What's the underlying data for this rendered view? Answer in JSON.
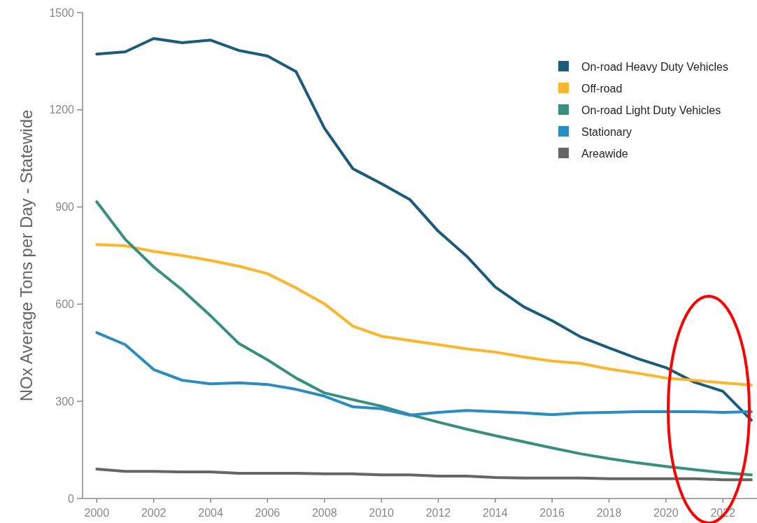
{
  "chart_data": {
    "type": "line",
    "ylabel": "NOx Average Tons per Day - Statewide",
    "x": [
      2000,
      2001,
      2002,
      2003,
      2004,
      2005,
      2006,
      2007,
      2008,
      2009,
      2010,
      2011,
      2012,
      2013,
      2014,
      2015,
      2016,
      2017,
      2018,
      2019,
      2020,
      2021,
      2022,
      2023
    ],
    "series": [
      {
        "name": "On-road Heavy Duty Vehicles",
        "color": "#1b5b7b",
        "values": [
          1372,
          1379,
          1420,
          1407,
          1415,
          1383,
          1366,
          1318,
          1143,
          1018,
          972,
          923,
          825,
          748,
          653,
          592,
          549,
          499,
          465,
          432,
          404,
          359,
          331,
          242
        ]
      },
      {
        "name": "Off-road",
        "color": "#fbb62e",
        "values": [
          784,
          780,
          763,
          750,
          735,
          717,
          694,
          650,
          601,
          532,
          501,
          488,
          475,
          462,
          452,
          437,
          424,
          417,
          400,
          387,
          372,
          365,
          357,
          350
        ]
      },
      {
        "name": "On-road Light Duty Vehicles",
        "color": "#36907f",
        "values": [
          916,
          800,
          715,
          644,
          564,
          478,
          428,
          372,
          326,
          305,
          285,
          259,
          236,
          214,
          194,
          175,
          156,
          138,
          123,
          110,
          99,
          89,
          80,
          73
        ]
      },
      {
        "name": "Stationary",
        "color": "#2b8cc4",
        "values": [
          512,
          475,
          398,
          365,
          354,
          357,
          352,
          337,
          316,
          283,
          277,
          257,
          266,
          272,
          268,
          264,
          259,
          264,
          266,
          268,
          268,
          268,
          266,
          268
        ]
      },
      {
        "name": "Areawide",
        "color": "#666666",
        "values": [
          91,
          84,
          84,
          82,
          82,
          78,
          78,
          78,
          76,
          76,
          73,
          73,
          69,
          69,
          65,
          63,
          63,
          63,
          61,
          61,
          61,
          61,
          58,
          58
        ]
      }
    ],
    "xlim": [
      1999.5,
      2023.2
    ],
    "xticks": [
      2000,
      2002,
      2004,
      2006,
      2008,
      2010,
      2012,
      2014,
      2016,
      2018,
      2020,
      2022
    ],
    "ylim": [
      0,
      1500
    ],
    "yticks": [
      0,
      300,
      600,
      900,
      1200,
      1500
    ],
    "legend": "top right",
    "marker": "none",
    "line_style": "solid",
    "grid": false
  }
}
